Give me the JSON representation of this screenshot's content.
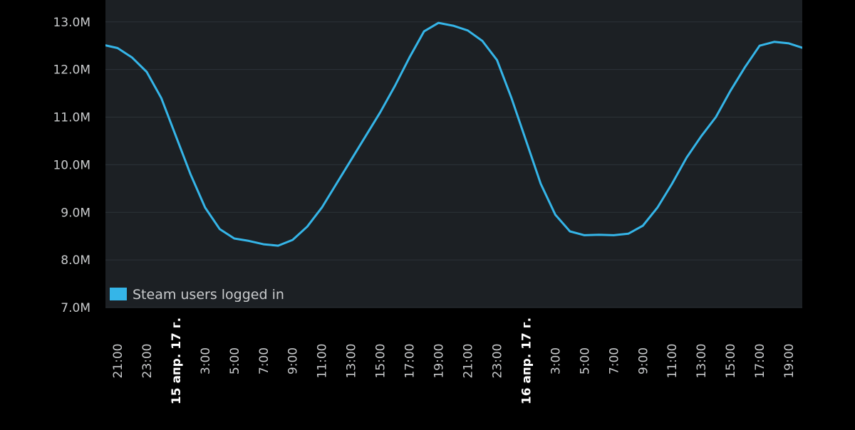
{
  "chart_data": {
    "type": "line",
    "categories": [
      null,
      "21:00",
      null,
      "23:00",
      null,
      "15 апр. 17 г.",
      null,
      "3:00",
      null,
      "5:00",
      null,
      "7:00",
      null,
      "9:00",
      null,
      "11:00",
      null,
      "13:00",
      null,
      "15:00",
      null,
      "17:00",
      null,
      "19:00",
      null,
      "21:00",
      null,
      "23:00",
      null,
      "16 апр. 17 г.",
      null,
      "3:00",
      null,
      "5:00",
      null,
      "7:00",
      null,
      "9:00",
      null,
      "11:00",
      null,
      "13:00",
      null,
      "15:00",
      null,
      "17:00",
      null,
      "19:00",
      null
    ],
    "series": [
      {
        "name": "Steam users logged in",
        "color": "#35b5e8",
        "values": [
          12520000,
          12450000,
          12250000,
          11950000,
          11400000,
          10600000,
          9800000,
          9100000,
          8650000,
          8450000,
          8400000,
          8330000,
          8300000,
          8420000,
          8700000,
          9100000,
          9600000,
          10100000,
          10600000,
          11100000,
          11650000,
          12250000,
          12800000,
          12980000,
          12920000,
          12820000,
          12600000,
          12200000,
          11400000,
          10500000,
          9600000,
          8950000,
          8600000,
          8520000,
          8530000,
          8520000,
          8550000,
          8720000,
          9100000,
          9600000,
          10150000,
          10600000,
          11000000,
          11550000,
          12050000,
          12500000,
          12580000,
          12550000,
          12450000
        ]
      }
    ],
    "ylim": [
      7000000,
      13460000
    ],
    "yticks": [
      {
        "value": 7000000,
        "label": "7.0M"
      },
      {
        "value": 8000000,
        "label": "8.0M"
      },
      {
        "value": 9000000,
        "label": "9.0M"
      },
      {
        "value": 10000000,
        "label": "10.0M"
      },
      {
        "value": 11000000,
        "label": "11.0M"
      },
      {
        "value": 12000000,
        "label": "12.0M"
      },
      {
        "value": 13000000,
        "label": "13.0M"
      }
    ],
    "grid": true,
    "legend": "lower left"
  }
}
